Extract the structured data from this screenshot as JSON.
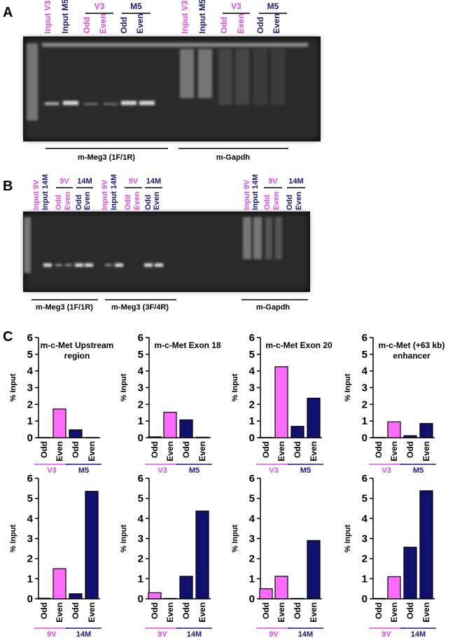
{
  "panel_a": {
    "letter": "A",
    "lanes": [
      {
        "text": "Input V3",
        "color": "#e04ce0"
      },
      {
        "text": "Input M5",
        "color": "#1a1a7a"
      },
      {
        "text": "Odd",
        "color": "#e04ce0"
      },
      {
        "text": "Even",
        "color": "#e04ce0"
      },
      {
        "text": "Odd",
        "color": "#1a1a7a"
      },
      {
        "text": "Even",
        "color": "#1a1a7a"
      },
      {
        "text": "Input V3",
        "color": "#e04ce0"
      },
      {
        "text": "Input M5",
        "color": "#1a1a7a"
      },
      {
        "text": "Odd",
        "color": "#e04ce0"
      },
      {
        "text": "Even",
        "color": "#e04ce0"
      },
      {
        "text": "Odd",
        "color": "#1a1a7a"
      },
      {
        "text": "Even",
        "color": "#1a1a7a"
      }
    ],
    "groups": [
      {
        "text": "V3",
        "color": "#e04ce0"
      },
      {
        "text": "M5",
        "color": "#1a1a7a"
      },
      {
        "text": "V3",
        "color": "#e04ce0"
      },
      {
        "text": "M5",
        "color": "#1a1a7a"
      }
    ],
    "primers": [
      "m-Meg3 (1F/1R)",
      "m-Gapdh"
    ]
  },
  "panel_b": {
    "letter": "B",
    "lanes": [
      {
        "text": "Input 9V",
        "color": "#e04ce0"
      },
      {
        "text": "Input 14M",
        "color": "#1a1a7a"
      },
      {
        "text": "Odd",
        "color": "#e04ce0"
      },
      {
        "text": "Even",
        "color": "#e04ce0"
      },
      {
        "text": "Odd",
        "color": "#1a1a7a"
      },
      {
        "text": "Even",
        "color": "#1a1a7a"
      },
      {
        "text": "Input 9V",
        "color": "#e04ce0"
      },
      {
        "text": "Input 14M",
        "color": "#1a1a7a"
      },
      {
        "text": "Odd",
        "color": "#e04ce0"
      },
      {
        "text": "Even",
        "color": "#e04ce0"
      },
      {
        "text": "Odd",
        "color": "#1a1a7a"
      },
      {
        "text": "Even",
        "color": "#1a1a7a"
      },
      {
        "text": "Input 9V",
        "color": "#e04ce0"
      },
      {
        "text": "Input 14M",
        "color": "#1a1a7a"
      },
      {
        "text": "Odd",
        "color": "#e04ce0"
      },
      {
        "text": "Even",
        "color": "#e04ce0"
      },
      {
        "text": "Odd",
        "color": "#1a1a7a"
      },
      {
        "text": "Even",
        "color": "#1a1a7a"
      }
    ],
    "groups": [
      {
        "text": "9V",
        "color": "#e04ce0"
      },
      {
        "text": "14M",
        "color": "#1a1a7a"
      },
      {
        "text": "9V",
        "color": "#e04ce0"
      },
      {
        "text": "14M",
        "color": "#1a1a7a"
      },
      {
        "text": "9V",
        "color": "#e04ce0"
      },
      {
        "text": "14M",
        "color": "#1a1a7a"
      }
    ],
    "primers": [
      "m-Meg3 (1F/1R)",
      "m-Meg3 (3F/4R)",
      "m-Gapdh"
    ]
  },
  "panel_c": {
    "letter": "C"
  },
  "chart_data": [
    {
      "type": "bar",
      "title": "m-c-Met Upstream region",
      "ylabel": "% Input",
      "categories": [
        "Odd",
        "Even",
        "Odd",
        "Even"
      ],
      "values": [
        0.02,
        1.72,
        0.47,
        0.02
      ],
      "colors": [
        "#ff6bff",
        "#ff6bff",
        "#10106e",
        "#10106e"
      ],
      "groups": [
        {
          "text": "V3",
          "color": "#e04ce0"
        },
        {
          "text": "M5",
          "color": "#1a1a7a"
        }
      ],
      "ylim": [
        0,
        6
      ],
      "yticks": [
        0,
        1,
        2,
        3,
        4,
        5,
        6
      ]
    },
    {
      "type": "bar",
      "title": "m-c-Met Exon 18",
      "ylabel": "% Input",
      "categories": [
        "Odd",
        "Even",
        "Odd",
        "Even"
      ],
      "values": [
        0.05,
        1.52,
        1.07,
        0.03
      ],
      "colors": [
        "#ff6bff",
        "#ff6bff",
        "#10106e",
        "#10106e"
      ],
      "groups": [
        {
          "text": "V3",
          "color": "#e04ce0"
        },
        {
          "text": "M5",
          "color": "#1a1a7a"
        }
      ],
      "ylim": [
        0,
        6
      ],
      "yticks": [
        0,
        1,
        2,
        3,
        4,
        5,
        6
      ]
    },
    {
      "type": "bar",
      "title": "m-c-Met Exon 20",
      "ylabel": "% Input",
      "categories": [
        "Odd",
        "Even",
        "Odd",
        "Even"
      ],
      "values": [
        0.02,
        4.25,
        0.68,
        2.37
      ],
      "colors": [
        "#ff6bff",
        "#ff6bff",
        "#10106e",
        "#10106e"
      ],
      "groups": [
        {
          "text": "V3",
          "color": "#e04ce0"
        },
        {
          "text": "M5",
          "color": "#1a1a7a"
        }
      ],
      "ylim": [
        0,
        6
      ],
      "yticks": [
        0,
        1,
        2,
        3,
        4,
        5,
        6
      ]
    },
    {
      "type": "bar",
      "title": "m-c-Met (+63 kb) enhancer",
      "ylabel": "% Input",
      "categories": [
        "Odd",
        "Even",
        "Odd",
        "Even"
      ],
      "values": [
        0.02,
        0.95,
        0.12,
        0.85
      ],
      "colors": [
        "#ff6bff",
        "#ff6bff",
        "#10106e",
        "#10106e"
      ],
      "groups": [
        {
          "text": "V3",
          "color": "#e04ce0"
        },
        {
          "text": "M5",
          "color": "#1a1a7a"
        }
      ],
      "ylim": [
        0,
        6
      ],
      "yticks": [
        0,
        1,
        2,
        3,
        4,
        5,
        6
      ]
    },
    {
      "type": "bar",
      "ylabel": "% Input",
      "categories": [
        "Odd",
        "Even",
        "Odd",
        "Even"
      ],
      "values": [
        0.03,
        1.5,
        0.25,
        5.35
      ],
      "colors": [
        "#ff6bff",
        "#ff6bff",
        "#10106e",
        "#10106e"
      ],
      "groups": [
        {
          "text": "9V",
          "color": "#e04ce0"
        },
        {
          "text": "14M",
          "color": "#1a1a7a"
        }
      ],
      "ylim": [
        0,
        6
      ],
      "yticks": [
        0,
        1,
        2,
        3,
        4,
        5,
        6
      ]
    },
    {
      "type": "bar",
      "ylabel": "% Input",
      "categories": [
        "Odd",
        "Even",
        "Odd",
        "Even"
      ],
      "values": [
        0.3,
        0.02,
        1.12,
        4.37
      ],
      "colors": [
        "#ff6bff",
        "#ff6bff",
        "#10106e",
        "#10106e"
      ],
      "groups": [
        {
          "text": "9V",
          "color": "#e04ce0"
        },
        {
          "text": "14M",
          "color": "#1a1a7a"
        }
      ],
      "ylim": [
        0,
        6
      ],
      "yticks": [
        0,
        1,
        2,
        3,
        4,
        5,
        6
      ]
    },
    {
      "type": "bar",
      "ylabel": "% Input",
      "categories": [
        "Odd",
        "Even",
        "Odd",
        "Even"
      ],
      "values": [
        0.5,
        1.12,
        0.02,
        2.9
      ],
      "colors": [
        "#ff6bff",
        "#ff6bff",
        "#10106e",
        "#10106e"
      ],
      "groups": [
        {
          "text": "9V",
          "color": "#e04ce0"
        },
        {
          "text": "14M",
          "color": "#1a1a7a"
        }
      ],
      "ylim": [
        0,
        6
      ],
      "yticks": [
        0,
        1,
        2,
        3,
        4,
        5,
        6
      ]
    },
    {
      "type": "bar",
      "ylabel": "% Input",
      "categories": [
        "Odd",
        "Even",
        "Odd",
        "Even"
      ],
      "values": [
        0.02,
        1.1,
        2.57,
        5.38
      ],
      "colors": [
        "#ff6bff",
        "#ff6bff",
        "#10106e",
        "#10106e"
      ],
      "groups": [
        {
          "text": "9V",
          "color": "#e04ce0"
        },
        {
          "text": "14M",
          "color": "#1a1a7a"
        }
      ],
      "ylim": [
        0,
        6
      ],
      "yticks": [
        0,
        1,
        2,
        3,
        4,
        5,
        6
      ]
    }
  ]
}
